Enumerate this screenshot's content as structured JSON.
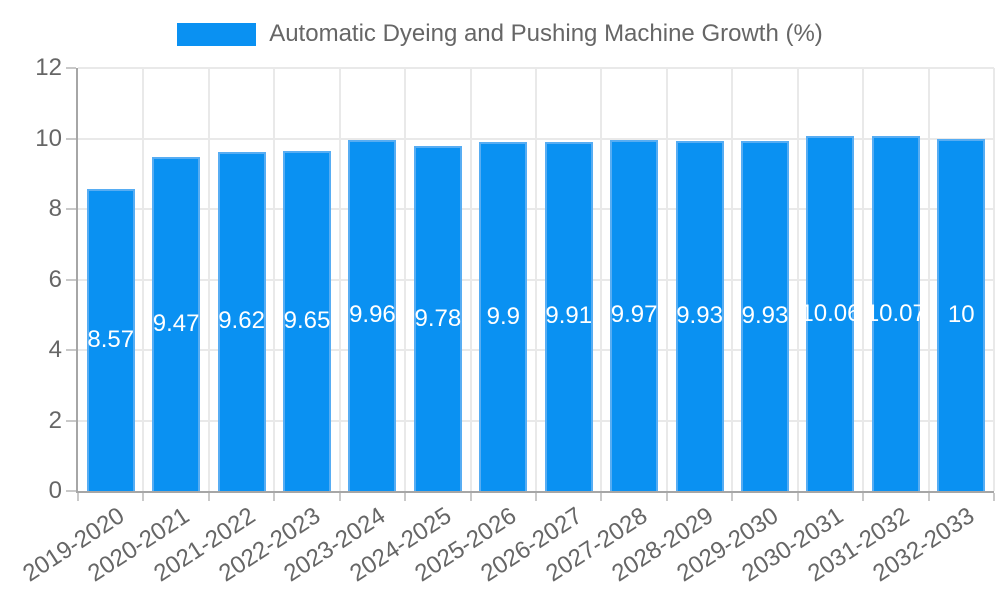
{
  "chart_data": {
    "type": "bar",
    "title": "Automatic Dyeing and Pushing Machine Growth (%)",
    "categories": [
      "2019-2020",
      "2020-2021",
      "2021-2022",
      "2022-2023",
      "2023-2024",
      "2024-2025",
      "2025-2026",
      "2026-2027",
      "2027-2028",
      "2028-2029",
      "2029-2030",
      "2030-2031",
      "2031-2032",
      "2032-2033"
    ],
    "values": [
      8.57,
      9.47,
      9.62,
      9.65,
      9.96,
      9.78,
      9.9,
      9.91,
      9.97,
      9.93,
      9.93,
      10.06,
      10.07,
      10
    ],
    "bar_labels": [
      "8.57",
      "9.47",
      "9.62",
      "9.65",
      "9.96",
      "9.78",
      "9.9",
      "9.91",
      "9.97",
      "9.93",
      "9.93",
      "10.06",
      "10.07",
      "10"
    ],
    "xlabel": "",
    "ylabel": "",
    "ylim": [
      0,
      12
    ],
    "yticks": [
      0,
      2,
      4,
      6,
      8,
      10,
      12
    ],
    "grid": true,
    "legend_position": "top",
    "colors": {
      "bar": "#0a91f2",
      "bar_border": "#57adf3",
      "value_label": "#ffffff",
      "axis_text": "#666666",
      "gridline": "#e9e9e9",
      "axis_line": "#a6a6a6",
      "background": "#ffffff"
    }
  }
}
